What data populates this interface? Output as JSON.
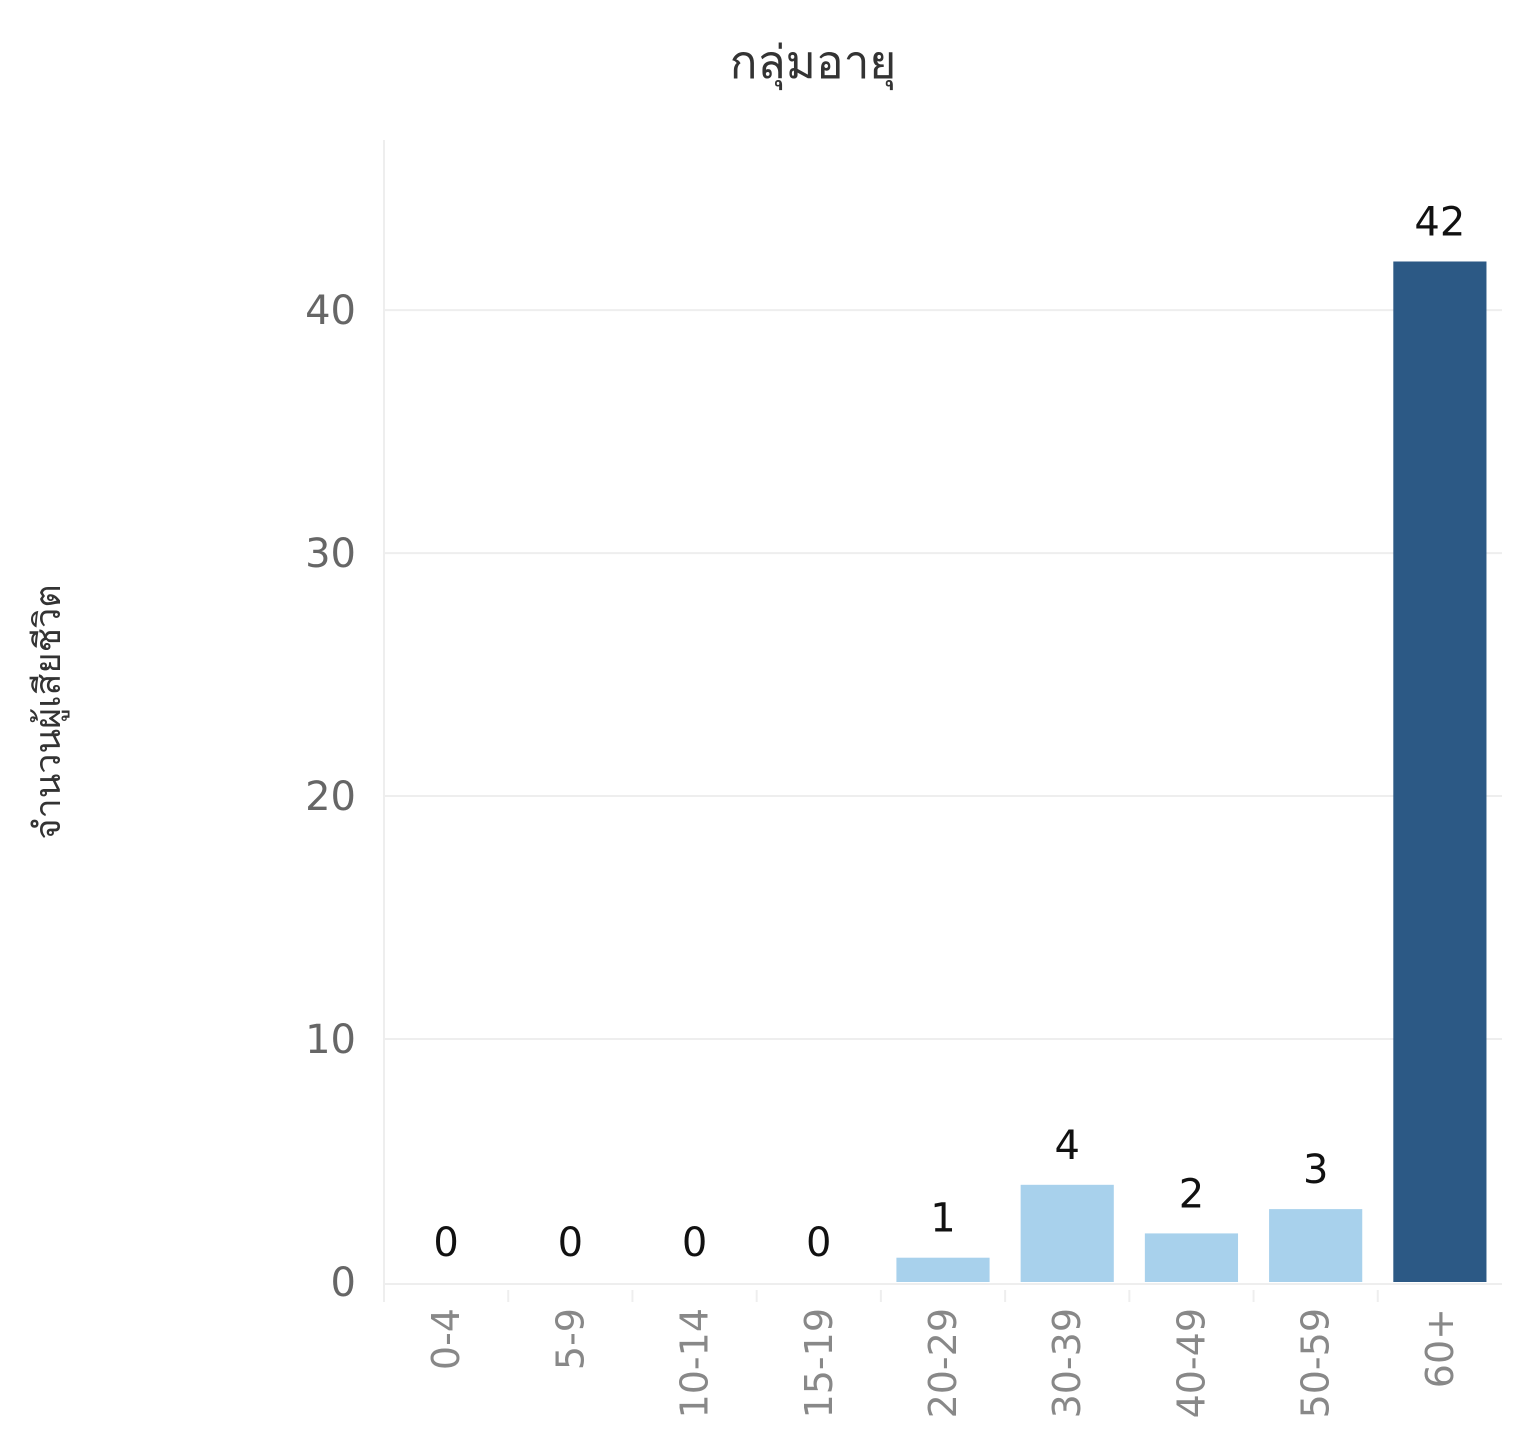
{
  "chart_data": {
    "type": "bar",
    "title": "กลุ่มอายุ",
    "xlabel": "",
    "ylabel": "จำนวนผู้เสียชีวิต",
    "categories": [
      "0-4",
      "5-9",
      "10-14",
      "15-19",
      "20-29",
      "30-39",
      "40-49",
      "50-59",
      "60+"
    ],
    "values": [
      0,
      0,
      0,
      0,
      1,
      4,
      2,
      3,
      42
    ],
    "data_labels": [
      "0",
      "0",
      "0",
      "0",
      "1",
      "4",
      "2",
      "3",
      "42"
    ],
    "ylim": [
      0,
      47
    ],
    "yticks": [
      0,
      10,
      20,
      30,
      40
    ],
    "ytick_labels": [
      "0",
      "10",
      "20",
      "30",
      "40"
    ],
    "grid": true,
    "legend": "none",
    "colors": {
      "low": "#a8d1ec",
      "high": "#2c5985"
    }
  }
}
